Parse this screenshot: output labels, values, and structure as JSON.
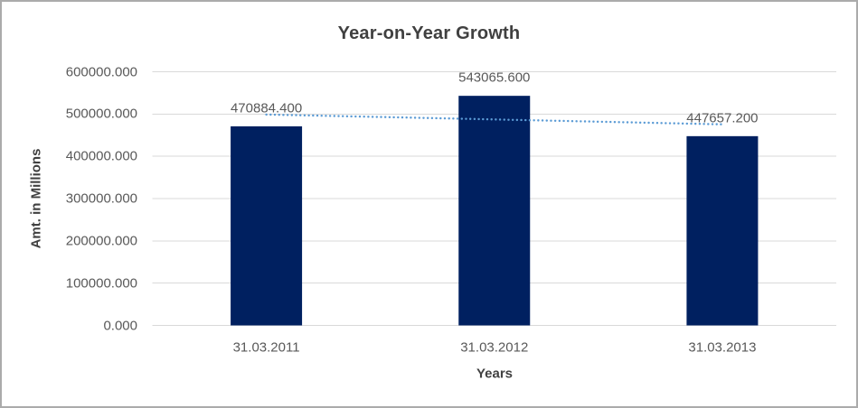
{
  "chart_data": {
    "type": "bar",
    "title": "Year-on-Year Growth",
    "xlabel": "Years",
    "ylabel": "Amt. in Millions",
    "categories": [
      "31.03.2011",
      "31.03.2012",
      "31.03.2013"
    ],
    "values": [
      470884.4,
      543065.6,
      447657.2
    ],
    "data_labels": [
      "470884.400",
      "543065.600",
      "447657.200"
    ],
    "ylim": [
      0,
      600000
    ],
    "ytick_values": [
      0,
      100000,
      200000,
      300000,
      400000,
      500000,
      600000
    ],
    "ytick_labels": [
      "0.000",
      "100000.000",
      "200000.000",
      "300000.000",
      "400000.000",
      "500000.000",
      "600000.000"
    ],
    "grid": true,
    "legend": "none",
    "bar_color": "#002060",
    "trendline": {
      "type": "linear",
      "style": "dotted",
      "color": "#5B9BD5"
    },
    "colors": {
      "title_text": "#404040",
      "axis_title_text": "#404040",
      "tick_text": "#595959",
      "data_label_text": "#595959",
      "gridline": "#D9D9D9",
      "canvas_border": "#ABABAB",
      "background": "#FFFFFF"
    }
  }
}
